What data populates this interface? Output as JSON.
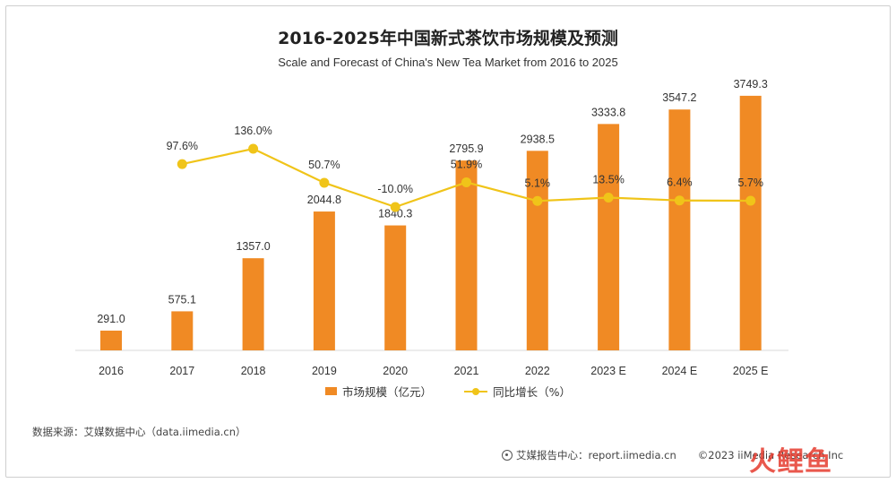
{
  "chart_data": {
    "type": "bar",
    "title": "2016-2025年中国新式茶饮市场规模及预测",
    "subtitle": "Scale and Forecast of China's New Tea Market from 2016 to 2025",
    "categories": [
      "2016",
      "2017",
      "2018",
      "2019",
      "2020",
      "2021",
      "2022",
      "2023 E",
      "2024 E",
      "2025 E"
    ],
    "series": [
      {
        "name": "市场规模（亿元）",
        "type": "bar",
        "values": [
          291.0,
          575.1,
          1357.0,
          2044.8,
          1840.3,
          2795.9,
          2938.5,
          3333.8,
          3547.2,
          3749.3
        ],
        "labels": [
          "291.0",
          "575.1",
          "1357.0",
          "2044.8",
          "1840.3",
          "2795.9",
          "2938.5",
          "3333.8",
          "3547.2",
          "3749.3"
        ],
        "color": "#f08a24"
      },
      {
        "name": "同比增长（%）",
        "type": "line",
        "values": [
          null,
          97.6,
          136.0,
          50.7,
          -10.0,
          51.9,
          5.1,
          13.5,
          6.4,
          5.7
        ],
        "labels": [
          "",
          "97.6%",
          "136.0%",
          "50.7%",
          "-10.0%",
          "51.9%",
          "5.1%",
          "13.5%",
          "6.4%",
          "5.7%"
        ],
        "color": "#f0c419"
      }
    ],
    "ylim_bar": [
      0,
      4500
    ],
    "ylim_line": [
      -55,
      160
    ],
    "legend_position": "bottom",
    "grid": false
  },
  "source": "数据来源：艾媒数据中心（data.iimedia.cn）",
  "footer": {
    "report": "艾媒报告中心：report.iimedia.cn",
    "copyright": "©2023  iiMedia Research  Inc"
  },
  "watermark": "火鲤鱼"
}
